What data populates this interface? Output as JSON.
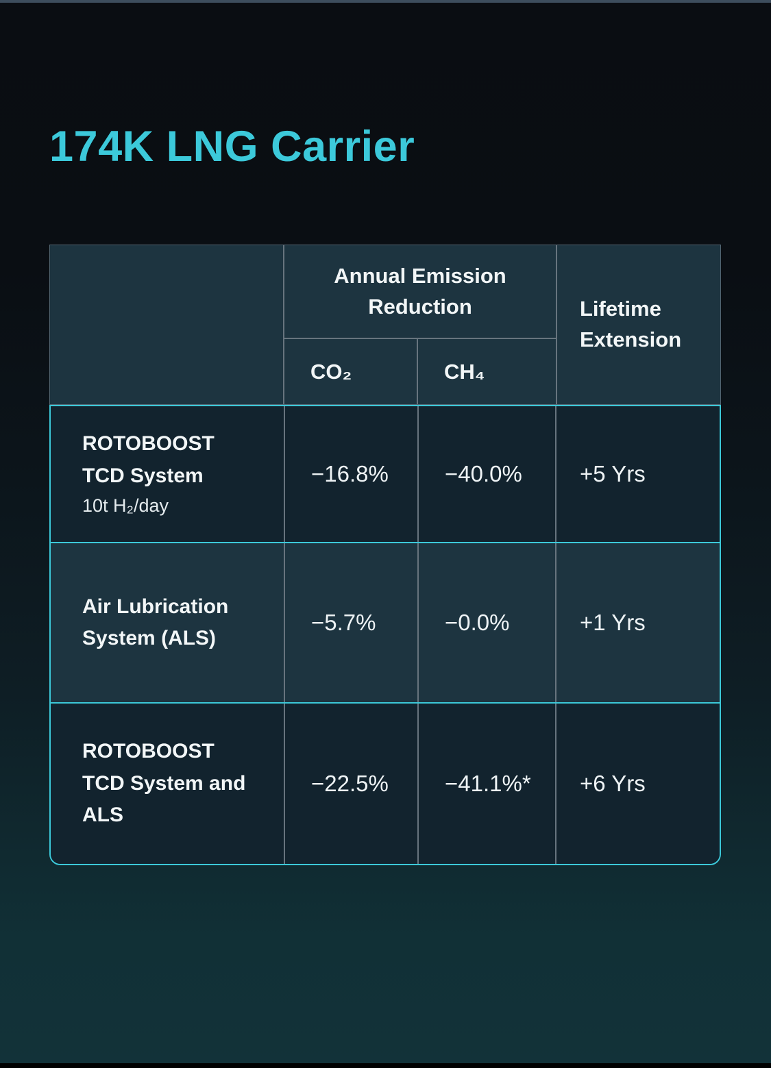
{
  "page": {
    "title": "174K LNG Carrier"
  },
  "colors": {
    "accent_cyan": "#3cc9da",
    "table_border_cyan": "#3cc9d9",
    "divider_gray": "#67747e",
    "header_bg": "#1d3440",
    "row_dark_bg": "#12232e",
    "row_light_bg": "#1d3440",
    "text_white": "#f2f6f7",
    "page_bg_top": "#0a0d12",
    "page_bg_bottom": "#123239",
    "top_bar": "#3d4d5d",
    "bottom_bar": "#000000"
  },
  "table": {
    "header": {
      "group_label": "Annual Emission Reduction",
      "co2": "CO₂",
      "ch4": "CH₄",
      "lifetime": "Lifetime Extension"
    },
    "rows": [
      {
        "label": "ROTOBOOST TCD System",
        "sublabel": "10t H₂/day",
        "co2": "−16.8%",
        "ch4": "−40.0%",
        "lifetime": "+5 Yrs"
      },
      {
        "label": "Air Lubrication System (ALS)",
        "sublabel": "",
        "co2": "−5.7%",
        "ch4": "−0.0%",
        "lifetime": "+1 Yrs"
      },
      {
        "label": "ROTOBOOST TCD System and ALS",
        "sublabel": "",
        "co2": "−22.5%",
        "ch4": "−41.1%*",
        "lifetime": "+6 Yrs"
      }
    ]
  }
}
